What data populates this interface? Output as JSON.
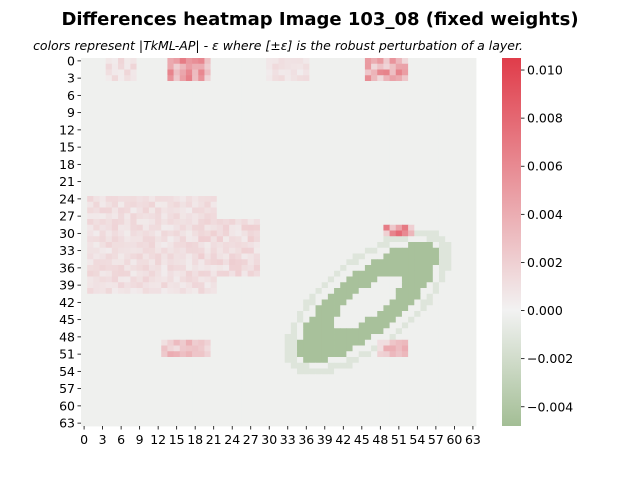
{
  "chart_data": {
    "type": "heatmap",
    "title": "Differences heatmap Image 103_08 (fixed weights)",
    "subtitle": "colors represent |TkML-AP| - ε where [±ε] is the robust perturbation of a layer.",
    "rows": 64,
    "cols": 64,
    "x_tick_labels": [
      "0",
      "3",
      "6",
      "9",
      "12",
      "15",
      "18",
      "21",
      "24",
      "27",
      "30",
      "33",
      "36",
      "39",
      "42",
      "45",
      "48",
      "51",
      "54",
      "57",
      "60",
      "63"
    ],
    "y_tick_labels": [
      "0",
      "3",
      "6",
      "9",
      "12",
      "15",
      "18",
      "21",
      "24",
      "27",
      "30",
      "33",
      "36",
      "39",
      "42",
      "45",
      "48",
      "51",
      "54",
      "57",
      "60",
      "63"
    ],
    "colorbar": {
      "vmin": -0.0048,
      "vmax": 0.0105,
      "center": 0,
      "ticks": [
        -0.004,
        -0.002,
        0.0,
        0.002,
        0.004,
        0.006,
        0.008,
        0.01
      ],
      "tick_labels": [
        "−0.004",
        "−0.002",
        "0.000",
        "0.002",
        "0.004",
        "0.006",
        "0.008",
        "0.010"
      ],
      "colors": {
        "negative": "#a3be95",
        "center": "#f2f2f2",
        "positive": "#e03c4a"
      }
    },
    "background_value": -0.0002,
    "regions": [
      {
        "desc": "ellipse outer ring",
        "shape": "ring",
        "cx": 46,
        "cy": 42,
        "a": 14.5,
        "b": 5.2,
        "angle_deg": -42,
        "inner": 0.45,
        "value": -0.0045
      },
      {
        "desc": "ellipse outer halo",
        "shape": "ring",
        "cx": 46,
        "cy": 42,
        "a": 17,
        "b": 7.5,
        "angle_deg": -42,
        "inner": 0.88,
        "value": -0.0012
      },
      {
        "desc": "left block",
        "shape": "rect",
        "r0": 24,
        "r1": 40,
        "c0": 1,
        "c1": 21,
        "value": 0.0015
      },
      {
        "desc": "left-middle block",
        "shape": "rect",
        "r0": 28,
        "r1": 37,
        "c0": 19,
        "c1": 28,
        "value": 0.0018
      },
      {
        "desc": "top red cluster A",
        "shape": "rect",
        "r0": 0,
        "r1": 3,
        "c0": 14,
        "c1": 20,
        "value": 0.006
      },
      {
        "desc": "top red cluster B",
        "shape": "rect",
        "r0": 0,
        "r1": 3,
        "c0": 46,
        "c1": 52,
        "value": 0.006
      },
      {
        "desc": "top faint cluster",
        "shape": "rect",
        "r0": 0,
        "r1": 3,
        "c0": 4,
        "c1": 8,
        "value": 0.0015
      },
      {
        "desc": "top faint cluster 2",
        "shape": "rect",
        "r0": 0,
        "r1": 3,
        "c0": 30,
        "c1": 36,
        "value": 0.0012
      },
      {
        "desc": "bottom red patch A",
        "shape": "rect",
        "r0": 49,
        "r1": 51,
        "c0": 13,
        "c1": 20,
        "value": 0.004
      },
      {
        "desc": "bottom red patch B",
        "shape": "rect",
        "r0": 49,
        "r1": 51,
        "c0": 48,
        "c1": 52,
        "value": 0.004
      },
      {
        "desc": "ellipse top red spots",
        "shape": "rect",
        "r0": 29,
        "r1": 30,
        "c0": 49,
        "c1": 53,
        "value": 0.007
      }
    ]
  }
}
